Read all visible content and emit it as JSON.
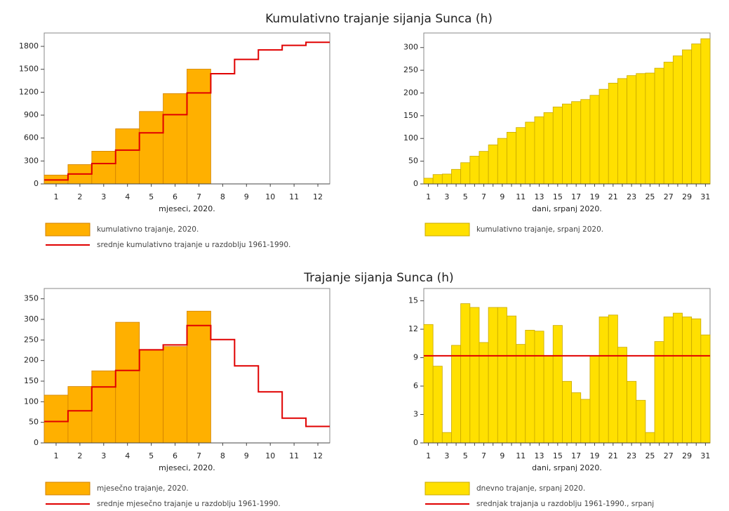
{
  "chart_data": [
    {
      "type": "bar",
      "title": "Kumulativno trajanje sijanja Sunca (h)",
      "x_label": "mjeseci, 2020.",
      "categories": [
        1,
        2,
        3,
        4,
        5,
        6,
        7,
        8,
        9,
        10,
        11,
        12
      ],
      "series": [
        {
          "name": "kumulativno trajanje, 2020.",
          "color": "#ffb000",
          "values": [
            116,
            253,
            428,
            721,
            948,
            1182,
            1502,
            null,
            null,
            null,
            null,
            null
          ]
        },
        {
          "name": "srednje kumulativno trajanje u razdoblju 1961-1990.",
          "type": "step",
          "color": "#e00000",
          "values": [
            52,
            130,
            266,
            442,
            668,
            906,
            1191,
            1442,
            1629,
            1753,
            1813,
            1853
          ]
        }
      ],
      "ylim": [
        0,
        1975
      ],
      "yticks": [
        0,
        300,
        600,
        900,
        1200,
        1500,
        1800
      ]
    },
    {
      "type": "bar",
      "x_label": "dani, srpanj 2020.",
      "categories": [
        1,
        null,
        3,
        null,
        5,
        null,
        7,
        null,
        9,
        null,
        11,
        null,
        13,
        null,
        15,
        null,
        17,
        null,
        19,
        null,
        21,
        null,
        23,
        null,
        25,
        null,
        27,
        null,
        29,
        null,
        31
      ],
      "series": [
        {
          "name": "kumulativno trajanje, srpanj 2020.",
          "color": "#ffe000",
          "values": [
            12.5,
            20.6,
            21.7,
            32,
            46.7,
            61,
            71.6,
            85.9,
            100.2,
            113.6,
            124,
            135.9,
            147.7,
            156.9,
            169.3,
            175.8,
            181.1,
            185.7,
            194.9,
            208.2,
            221.7,
            231.8,
            238.3,
            242.8,
            243.9,
            254.6,
            267.9,
            281.6,
            294.9,
            308,
            319.4
          ]
        }
      ],
      "ylim": [
        0,
        332
      ],
      "yticks": [
        0,
        50,
        100,
        150,
        200,
        250,
        300
      ]
    },
    {
      "type": "bar",
      "title": "Trajanje sijanja Sunca (h)",
      "x_label": "mjeseci, 2020.",
      "categories": [
        1,
        2,
        3,
        4,
        5,
        6,
        7,
        8,
        9,
        10,
        11,
        12
      ],
      "series": [
        {
          "name": "mjesečno trajanje, 2020.",
          "color": "#ffb000",
          "values": [
            116,
            137,
            175,
            293,
            227,
            234,
            320,
            null,
            null,
            null,
            null,
            null
          ]
        },
        {
          "name": "srednje mjesečno trajanje u razdoblju 1961-1990.",
          "type": "step",
          "color": "#e00000",
          "values": [
            52,
            78,
            136,
            176,
            226,
            238,
            285,
            251,
            187,
            124,
            60,
            40
          ]
        }
      ],
      "ylim": [
        0,
        375
      ],
      "yticks": [
        0,
        50,
        100,
        150,
        200,
        250,
        300,
        350
      ]
    },
    {
      "type": "bar",
      "x_label": "dani, srpanj 2020.",
      "categories": [
        1,
        null,
        3,
        null,
        5,
        null,
        7,
        null,
        9,
        null,
        11,
        null,
        13,
        null,
        15,
        null,
        17,
        null,
        19,
        null,
        21,
        null,
        23,
        null,
        25,
        null,
        27,
        null,
        29,
        null,
        31
      ],
      "series": [
        {
          "name": "dnevno trajanje, srpanj 2020.",
          "color": "#ffe000",
          "values": [
            12.5,
            8.1,
            1.1,
            10.3,
            14.7,
            14.3,
            10.6,
            14.3,
            14.3,
            13.4,
            10.4,
            11.9,
            11.8,
            9.2,
            12.4,
            6.5,
            5.3,
            4.6,
            9.2,
            13.3,
            13.5,
            10.1,
            6.5,
            4.5,
            1.1,
            10.7,
            13.3,
            13.7,
            13.3,
            13.1,
            11.4
          ]
        }
      ],
      "reference_line": {
        "name": "srednjak trajanja u razdoblju 1961-1990., srpanj",
        "color": "#e00000",
        "value": 9.2
      },
      "ylim": [
        0,
        16.3
      ],
      "yticks": [
        0,
        3,
        6,
        9,
        12,
        15
      ]
    }
  ]
}
